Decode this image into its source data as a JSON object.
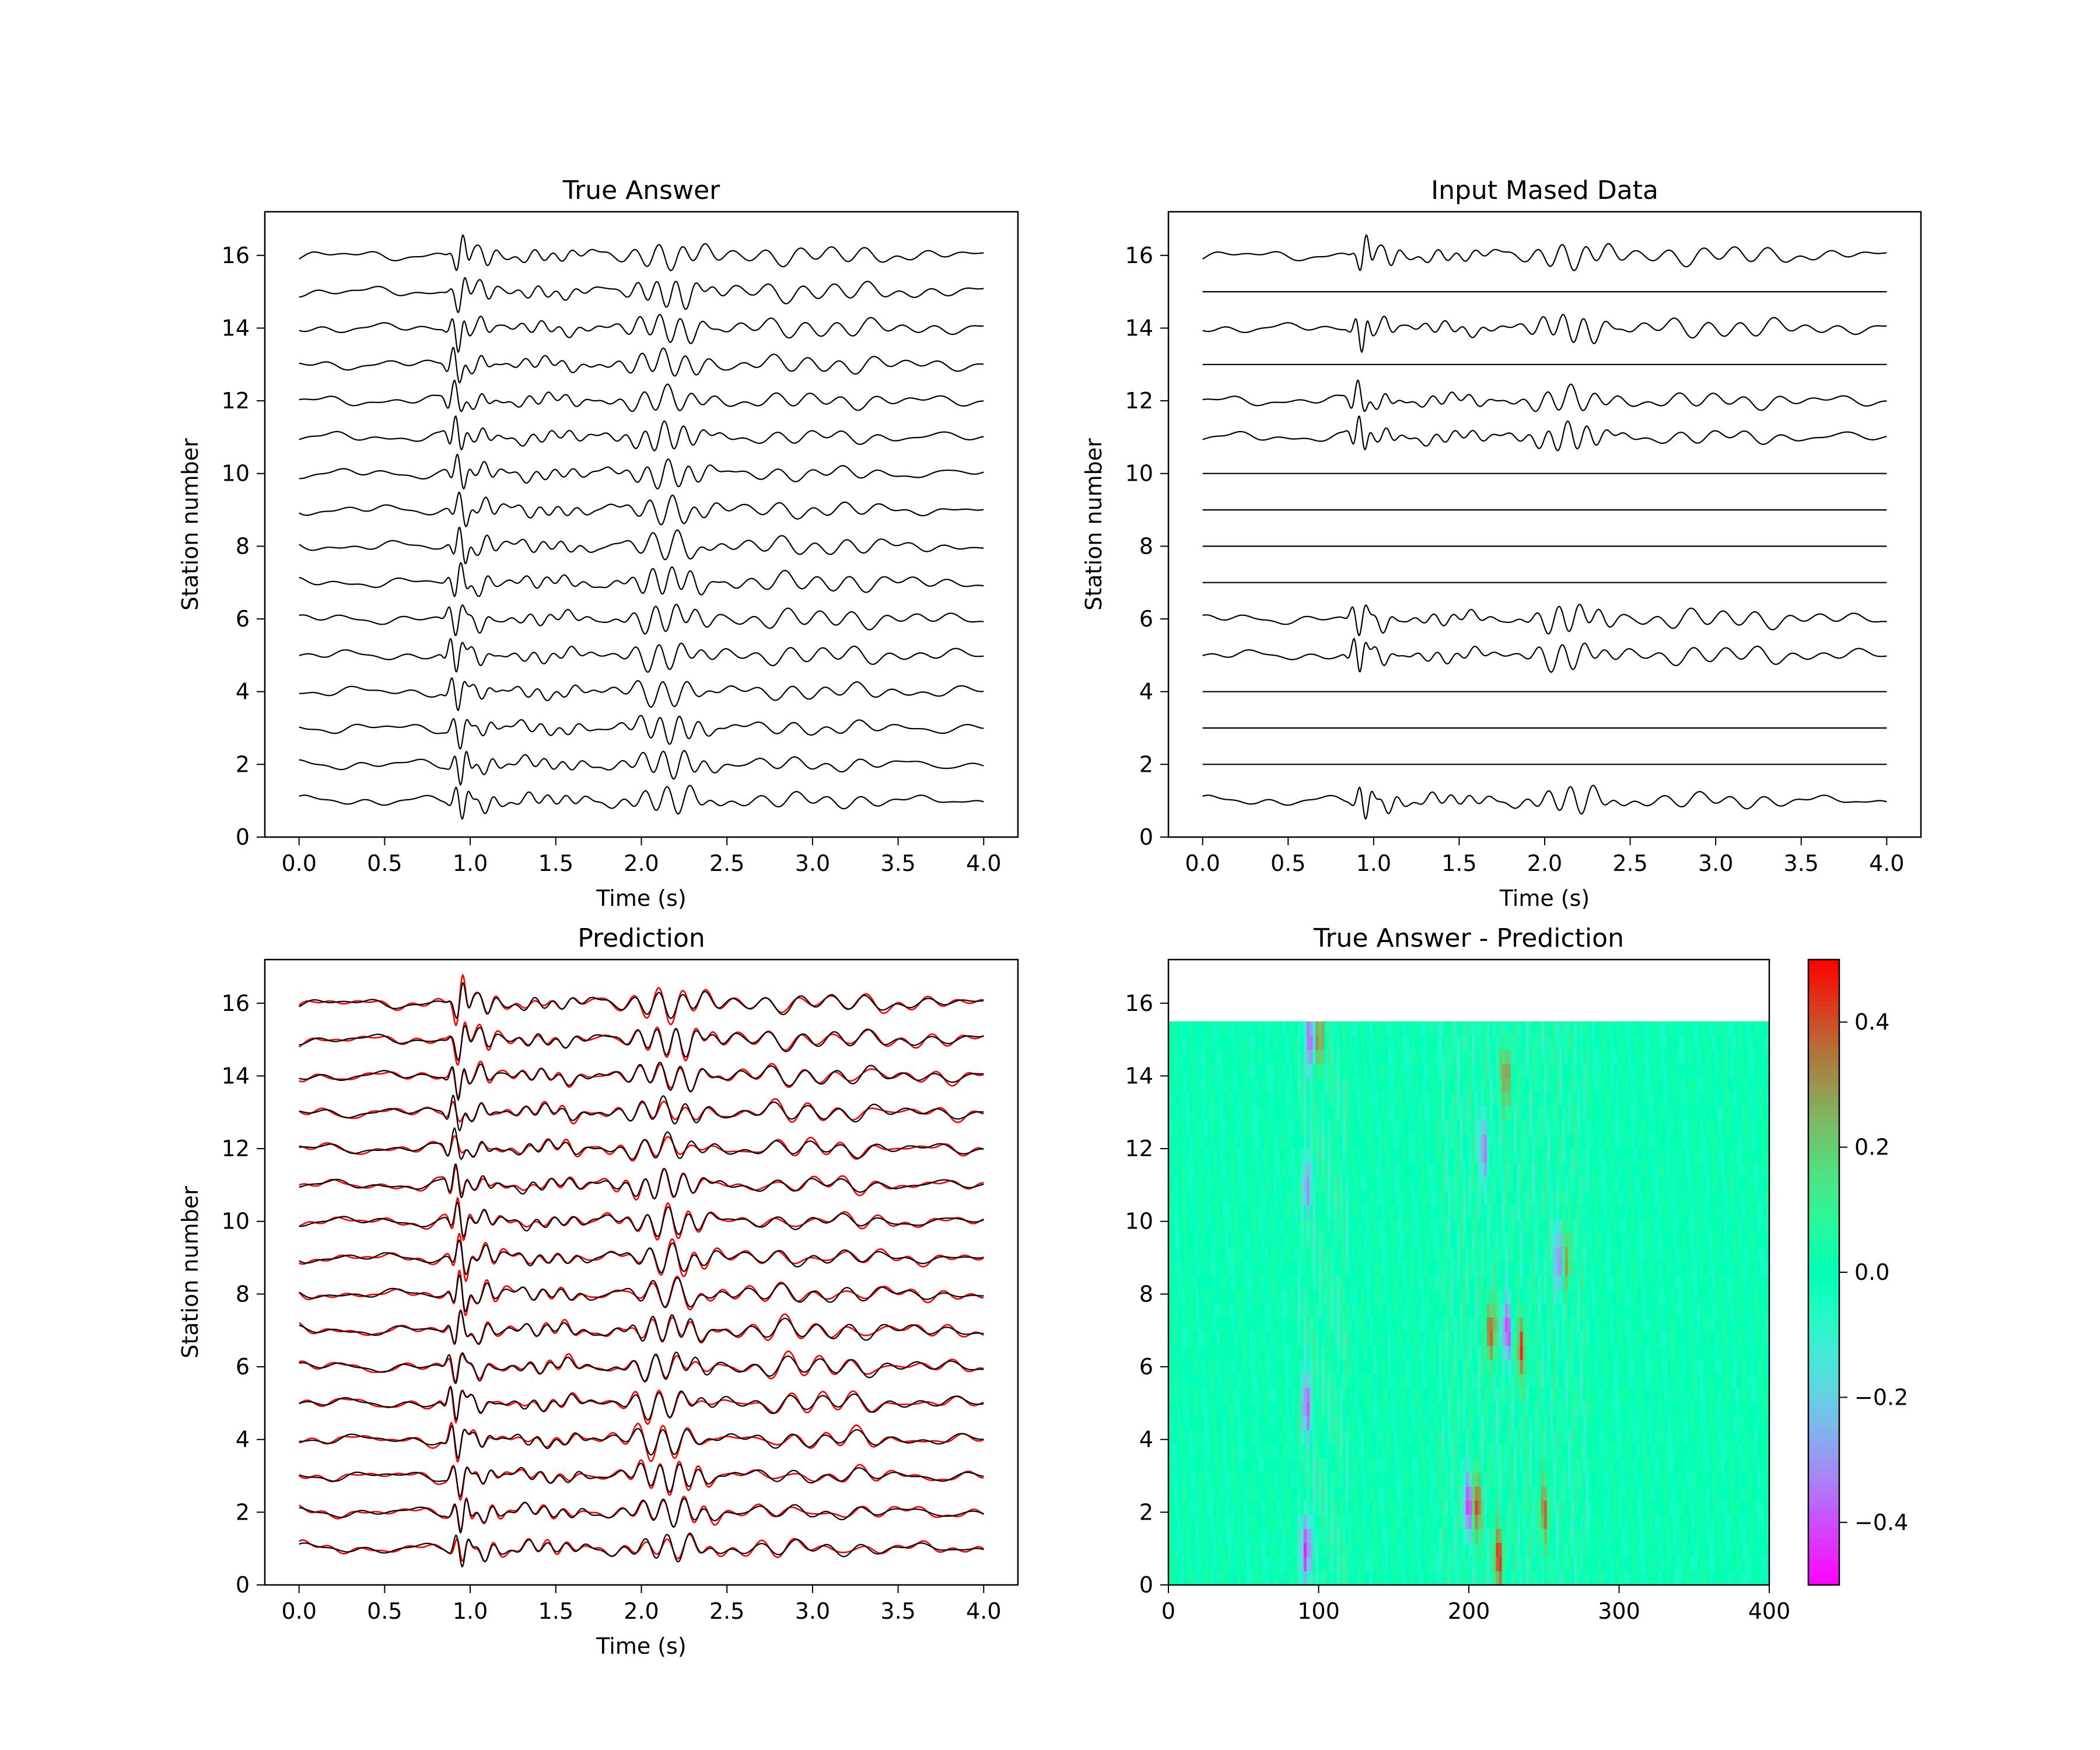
{
  "chart_data": [
    {
      "type": "line",
      "title": "True Answer",
      "xlabel": "Time (s)",
      "ylabel": "Station number",
      "xlim": [
        -0.2,
        4.2
      ],
      "ylim": [
        0,
        17.2
      ],
      "xticks": [
        "0.0",
        "0.5",
        "1.0",
        "1.5",
        "2.0",
        "2.5",
        "3.0",
        "3.5",
        "4.0"
      ],
      "yticks": [
        "0",
        "2",
        "4",
        "6",
        "8",
        "10",
        "12",
        "14",
        "16"
      ],
      "stations": [
        1,
        2,
        3,
        4,
        5,
        6,
        7,
        8,
        9,
        10,
        11,
        12,
        13,
        14,
        15,
        16
      ],
      "series": [
        {
          "color": "#000000",
          "stations_shown": [
            1,
            2,
            3,
            4,
            5,
            6,
            7,
            8,
            9,
            10,
            11,
            12,
            13,
            14,
            15,
            16
          ]
        }
      ],
      "time_range": [
        0.0,
        4.0
      ],
      "first_arrival_s": 0.9,
      "second_arrival_s": 2.05,
      "waveform_amplitude": 0.55
    },
    {
      "type": "line",
      "title": "Input Mased Data",
      "xlabel": "Time (s)",
      "ylabel": "Station number",
      "xlim": [
        -0.2,
        4.2
      ],
      "ylim": [
        0,
        17.2
      ],
      "xticks": [
        "0.0",
        "0.5",
        "1.0",
        "1.5",
        "2.0",
        "2.5",
        "3.0",
        "3.5",
        "4.0"
      ],
      "yticks": [
        "0",
        "2",
        "4",
        "6",
        "8",
        "10",
        "12",
        "14",
        "16"
      ],
      "stations": [
        1,
        2,
        3,
        4,
        5,
        6,
        7,
        8,
        9,
        10,
        11,
        12,
        13,
        14,
        15,
        16
      ],
      "unmasked_stations": [
        1,
        5,
        6,
        11,
        12,
        14,
        16
      ],
      "masked_stations": [
        2,
        3,
        4,
        7,
        8,
        9,
        10,
        13,
        15
      ],
      "series": [
        {
          "color": "#000000",
          "stations_shown": [
            1,
            5,
            6,
            11,
            12,
            14,
            16
          ]
        }
      ],
      "time_range": [
        0.0,
        4.0
      ]
    },
    {
      "type": "line",
      "title": "Prediction",
      "xlabel": "Time (s)",
      "ylabel": "Station number",
      "xlim": [
        -0.2,
        4.2
      ],
      "ylim": [
        0,
        17.2
      ],
      "xticks": [
        "0.0",
        "0.5",
        "1.0",
        "1.5",
        "2.0",
        "2.5",
        "3.0",
        "3.5",
        "4.0"
      ],
      "yticks": [
        "0",
        "2",
        "4",
        "6",
        "8",
        "10",
        "12",
        "14",
        "16"
      ],
      "stations": [
        1,
        2,
        3,
        4,
        5,
        6,
        7,
        8,
        9,
        10,
        11,
        12,
        13,
        14,
        15,
        16
      ],
      "series": [
        {
          "color": "#ff0000",
          "stations_shown": [
            1,
            2,
            3,
            4,
            5,
            6,
            7,
            8,
            9,
            10,
            11,
            12,
            13,
            14,
            15,
            16
          ]
        },
        {
          "color": "#000000",
          "stations_shown": [
            1,
            2,
            3,
            4,
            5,
            6,
            7,
            8,
            9,
            10,
            11,
            12,
            13,
            14,
            15,
            16
          ]
        }
      ],
      "time_range": [
        0.0,
        4.0
      ]
    },
    {
      "type": "heatmap",
      "title": "True Answer - Prediction",
      "xlim": [
        0,
        400
      ],
      "ylim": [
        0,
        17.2
      ],
      "data_extent_y": [
        0,
        15.5
      ],
      "xticks": [
        "0",
        "100",
        "200",
        "300",
        "400"
      ],
      "yticks": [
        "0",
        "2",
        "4",
        "6",
        "8",
        "10",
        "12",
        "14",
        "16"
      ],
      "colormap": "rainbow",
      "vmin": -0.5,
      "vmax": 0.5,
      "colorbar_ticks": [
        "−0.4",
        "−0.2",
        "0.0",
        "0.2",
        "0.4"
      ],
      "colorbar_tick_values": [
        -0.4,
        -0.2,
        0.0,
        0.2,
        0.4
      ],
      "hot_spots": [
        {
          "x": 92,
          "y": 1.0,
          "v": -0.45
        },
        {
          "x": 92,
          "y": 5.0,
          "v": -0.35
        },
        {
          "x": 92,
          "y": 11.0,
          "v": -0.3
        },
        {
          "x": 95,
          "y": 15.0,
          "v": -0.45
        },
        {
          "x": 100,
          "y": 15.0,
          "v": 0.4
        },
        {
          "x": 200,
          "y": 2.2,
          "v": -0.45
        },
        {
          "x": 205,
          "y": 2.2,
          "v": 0.45
        },
        {
          "x": 220,
          "y": 0.8,
          "v": 0.4
        },
        {
          "x": 215,
          "y": 7.0,
          "v": 0.4
        },
        {
          "x": 225,
          "y": 7.0,
          "v": -0.4
        },
        {
          "x": 235,
          "y": 6.5,
          "v": 0.35
        },
        {
          "x": 260,
          "y": 9.0,
          "v": -0.35
        },
        {
          "x": 265,
          "y": 9.0,
          "v": 0.3
        },
        {
          "x": 210,
          "y": 12.0,
          "v": -0.3
        },
        {
          "x": 225,
          "y": 14.0,
          "v": 0.3
        },
        {
          "x": 250,
          "y": 2.0,
          "v": 0.3
        }
      ]
    }
  ]
}
